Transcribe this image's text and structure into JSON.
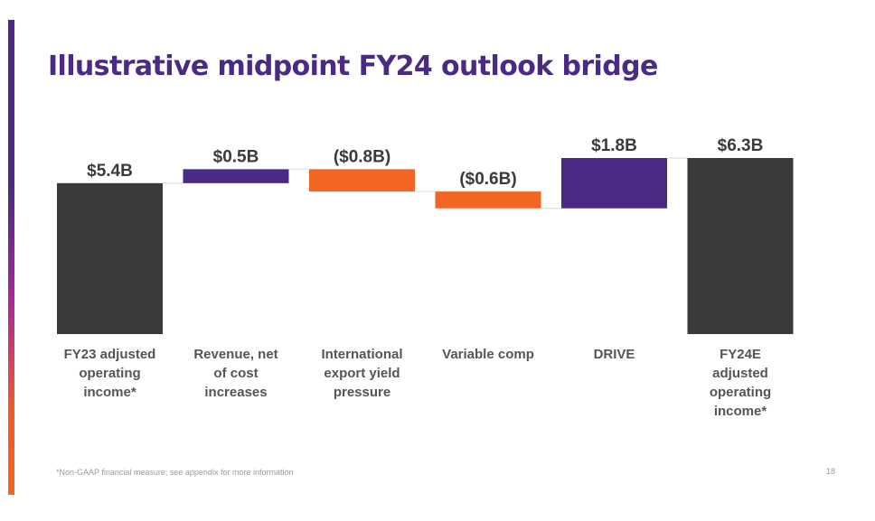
{
  "slide": {
    "title": "Illustrative midpoint FY24 outlook bridge",
    "footnote": "*Non-GAAP financial measure; see appendix for more information",
    "page_number": "18"
  },
  "colors": {
    "brand_purple": "#4a2a85",
    "decrease_orange": "#f26522",
    "total_gray": "#3a3a3a",
    "connector": "#e6e6e6"
  },
  "chart_data": {
    "type": "bar",
    "subtype": "waterfall",
    "unit": "$B",
    "categories": [
      [
        "FY23 adjusted",
        "operating",
        "income*"
      ],
      [
        "Revenue, net",
        "of cost",
        "increases"
      ],
      [
        "International",
        "export yield",
        "pressure"
      ],
      [
        "Variable comp"
      ],
      [
        "DRIVE"
      ],
      [
        "FY24E",
        "adjusted",
        "operating",
        "income*"
      ]
    ],
    "values": [
      5.4,
      0.5,
      -0.8,
      -0.6,
      1.8,
      6.3
    ],
    "kinds": [
      "total",
      "increase",
      "decrease",
      "decrease",
      "increase",
      "total"
    ],
    "value_labels": [
      "$5.4B",
      "$0.5B",
      "($0.8B)",
      "($0.6B)",
      "$1.8B",
      "$6.3B"
    ],
    "ylim": [
      0,
      6.3
    ],
    "grid": false,
    "legend": "none",
    "title": "",
    "xlabel": "",
    "ylabel": ""
  }
}
